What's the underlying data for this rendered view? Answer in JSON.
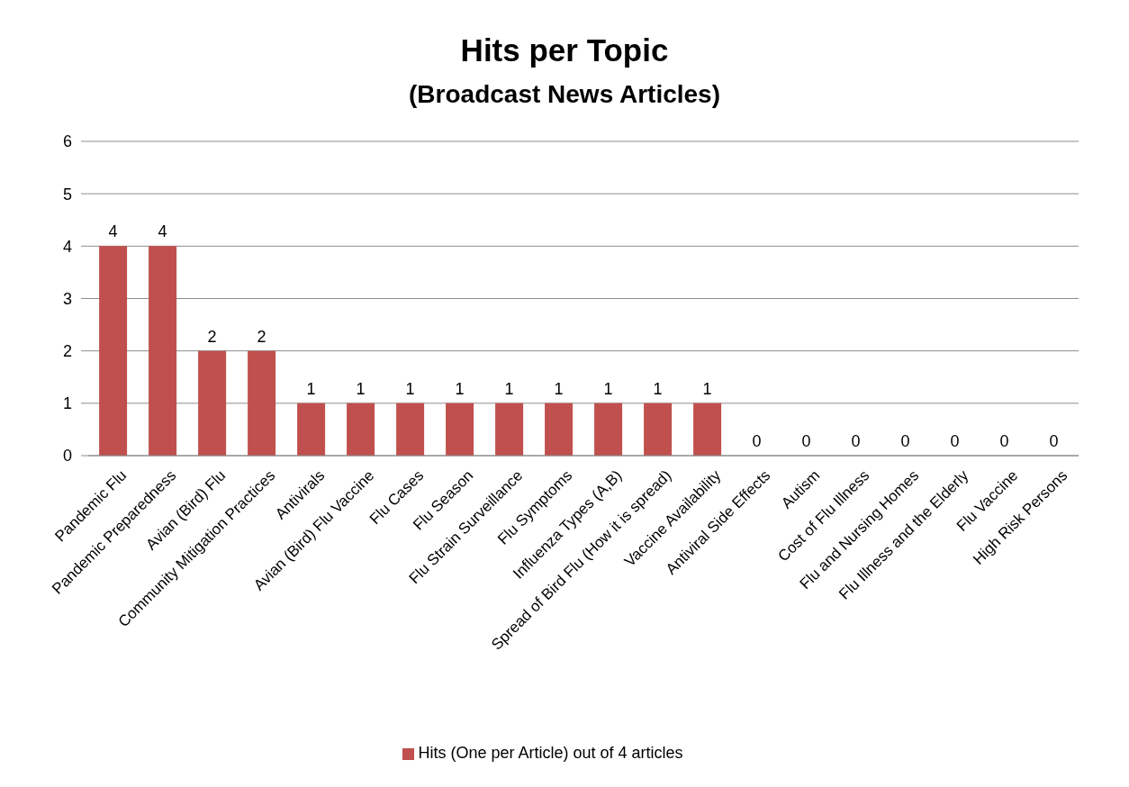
{
  "chart_data": {
    "type": "bar",
    "title": "Hits per Topic",
    "subtitle": "(Broadcast News Articles)",
    "categories": [
      "Pandemic Flu",
      "Pandemic Preparedness",
      "Avian (Bird) Flu",
      "Community Mitigation Practices",
      "Antivirals",
      "Avian (Bird) Flu Vaccine",
      "Flu Cases",
      "Flu Season",
      "Flu Strain Surveillance",
      "Flu Symptoms",
      "Influenza Types (A,B)",
      "Spread of Bird Flu (How it is spread)",
      "Vaccine Availability",
      "Antiviral Side Effects",
      "Autism",
      "Cost of Flu Illness",
      "Flu and Nursing Homes",
      "Flu Illness and the Elderly",
      "Flu Vaccine",
      "High Risk Persons"
    ],
    "series": [
      {
        "name": "Hits (One per Article) out of 4 articles",
        "color": "#c0504d",
        "values": [
          4,
          4,
          2,
          2,
          1,
          1,
          1,
          1,
          1,
          1,
          1,
          1,
          1,
          0,
          0,
          0,
          0,
          0,
          0,
          0
        ]
      }
    ],
    "ylim": [
      0,
      6
    ],
    "yticks": [
      0,
      1,
      2,
      3,
      4,
      5,
      6
    ],
    "grid": "y",
    "legend": "bottom",
    "data_labels": true
  }
}
